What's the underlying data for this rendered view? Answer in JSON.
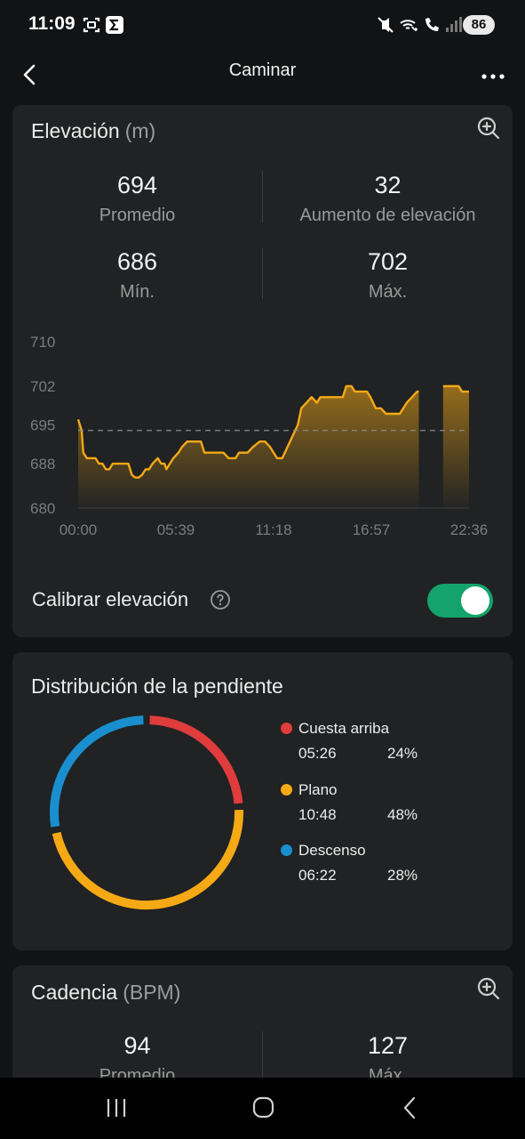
{
  "status_bar": {
    "time": "11:09",
    "battery": "86",
    "icons": [
      "screenshot-icon",
      "sigma-app-icon",
      "mute-vibrate-icon",
      "wifi-call-icon",
      "signal-icon"
    ]
  },
  "header": {
    "title": "Caminar",
    "back_icon": "chevron-left-icon",
    "more_icon": "more-dots-icon"
  },
  "elevation": {
    "title": "Elevación",
    "unit": "(m)",
    "stats": [
      {
        "value": "694",
        "label": "Promedio"
      },
      {
        "value": "32",
        "label": "Aumento de elevación"
      },
      {
        "value": "686",
        "label": "Mín."
      },
      {
        "value": "702",
        "label": "Máx."
      }
    ],
    "toggle_label": "Calibrar elevación",
    "toggle_on": true
  },
  "chart_data": {
    "type": "area",
    "title": "",
    "xlabel": "",
    "ylabel": "",
    "y_ticks": [
      "710",
      "702",
      "695",
      "688",
      "680"
    ],
    "x_ticks": [
      "00:00",
      "05:39",
      "11:18",
      "16:57",
      "22:36"
    ],
    "ylim": [
      680,
      710
    ],
    "xlim": [
      0,
      22.6
    ],
    "average_line": 694,
    "colors": {
      "line": "#f5a915",
      "average": "#8a8a8a"
    },
    "segments": [
      [
        [
          0.0,
          696
        ],
        [
          0.2,
          694
        ],
        [
          0.3,
          690
        ],
        [
          0.5,
          689
        ],
        [
          1.0,
          689
        ],
        [
          1.2,
          688
        ],
        [
          1.4,
          688
        ],
        [
          1.6,
          687
        ],
        [
          1.8,
          687
        ],
        [
          2.0,
          688
        ],
        [
          2.5,
          688
        ],
        [
          2.9,
          688
        ],
        [
          3.1,
          686
        ],
        [
          3.3,
          685.5
        ],
        [
          3.5,
          685.5
        ],
        [
          3.7,
          686
        ],
        [
          3.9,
          687
        ],
        [
          4.1,
          687
        ],
        [
          4.3,
          688
        ],
        [
          4.6,
          689
        ],
        [
          4.8,
          688
        ],
        [
          5.0,
          688
        ],
        [
          5.1,
          687
        ],
        [
          5.3,
          688
        ],
        [
          5.5,
          689
        ],
        [
          5.8,
          690
        ],
        [
          6.0,
          691
        ],
        [
          6.3,
          692
        ],
        [
          6.6,
          692
        ],
        [
          7.1,
          692
        ],
        [
          7.3,
          690
        ],
        [
          7.6,
          690
        ],
        [
          8.4,
          690
        ],
        [
          8.7,
          689
        ],
        [
          9.1,
          689
        ],
        [
          9.3,
          690
        ],
        [
          9.5,
          690
        ],
        [
          9.8,
          690
        ],
        [
          10.1,
          691
        ],
        [
          10.5,
          692
        ],
        [
          10.8,
          692
        ],
        [
          11.1,
          691
        ],
        [
          11.3,
          690
        ],
        [
          11.5,
          689
        ],
        [
          11.8,
          689
        ],
        [
          12.1,
          691
        ],
        [
          12.4,
          693
        ],
        [
          12.7,
          695
        ],
        [
          12.9,
          698
        ],
        [
          13.2,
          699
        ],
        [
          13.5,
          700
        ],
        [
          13.8,
          699
        ],
        [
          14.0,
          700
        ],
        [
          14.3,
          700
        ],
        [
          15.3,
          700
        ],
        [
          15.5,
          702
        ],
        [
          15.8,
          702
        ],
        [
          16.0,
          701
        ],
        [
          16.3,
          701
        ],
        [
          16.5,
          701
        ],
        [
          16.7,
          701
        ],
        [
          16.9,
          700
        ],
        [
          17.2,
          698
        ],
        [
          17.5,
          698
        ],
        [
          17.8,
          697
        ],
        [
          18.2,
          697
        ],
        [
          18.6,
          697
        ],
        [
          18.8,
          698
        ],
        [
          19.0,
          699
        ],
        [
          19.3,
          700
        ],
        [
          19.6,
          701
        ],
        [
          19.7,
          701
        ]
      ],
      [
        [
          21.1,
          702
        ],
        [
          21.3,
          702
        ],
        [
          21.6,
          702
        ],
        [
          22.0,
          702
        ],
        [
          22.2,
          701
        ],
        [
          22.4,
          701
        ],
        [
          22.6,
          701
        ]
      ]
    ]
  },
  "slope": {
    "title": "Distribución de la pendiente",
    "segments": [
      {
        "name": "Cuesta arriba",
        "time": "05:26",
        "percent": "24%",
        "value": 24,
        "color": "#e03c3c"
      },
      {
        "name": "Plano",
        "time": "10:48",
        "percent": "48%",
        "value": 48,
        "color": "#f5a915"
      },
      {
        "name": "Descenso",
        "time": "06:22",
        "percent": "28%",
        "value": 28,
        "color": "#1a8fcf"
      }
    ]
  },
  "cadence": {
    "title": "Cadencia",
    "unit": "(BPM)",
    "stats": [
      {
        "value": "94",
        "label": "Promedio"
      },
      {
        "value": "127",
        "label": "Máx."
      }
    ]
  },
  "nav_bar": {
    "icons": [
      "recent-apps-icon",
      "home-icon",
      "back-nav-icon"
    ]
  }
}
